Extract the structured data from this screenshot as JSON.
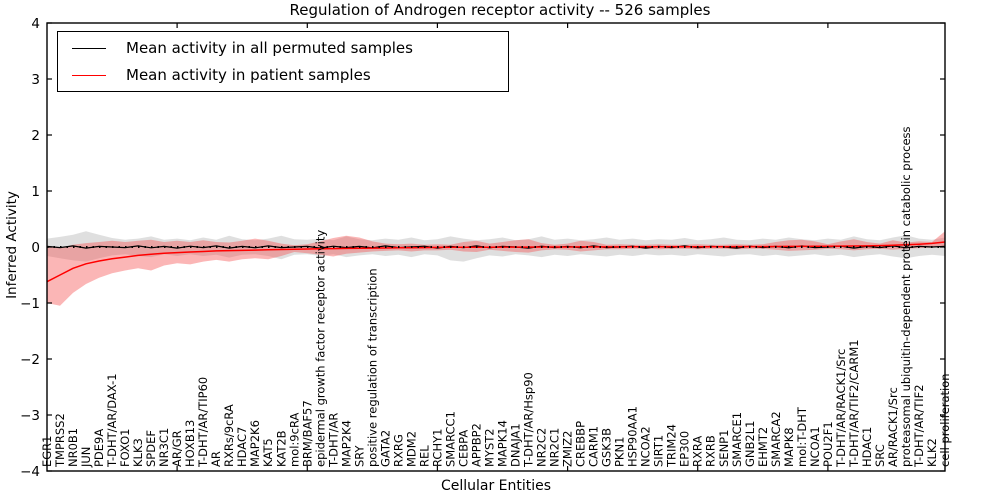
{
  "chart_data": {
    "type": "line",
    "title": "Regulation of Androgen receptor activity -- 526 samples",
    "xlabel": "Cellular Entities",
    "ylabel": "Inferred Activity",
    "ylim": [
      -4,
      4
    ],
    "yticks": [
      -4,
      -3,
      -2,
      -1,
      0,
      1,
      2,
      3,
      4
    ],
    "xticks": [
      10,
      20,
      30,
      40,
      50,
      60
    ],
    "grid": false,
    "legend_position": "upper left",
    "zero_line": {
      "style": "dotted",
      "color": "#000000"
    },
    "categories": [
      "EGR1",
      "TMPRSS2",
      "NR0B1",
      "JUN",
      "PDE9A",
      "T-DHT/AR/DAX-1",
      "FOXO1",
      "KLK3",
      "SPDEF",
      "NR3C1",
      "AR/GR",
      "HOXB13",
      "T-DHT/AR/TIP60",
      "AR",
      "RXRs/9cRA",
      "HDAC7",
      "MAP2K6",
      "KAT5",
      "KAT2B",
      "mol:9cRA",
      "BRM/BAF57",
      "epidermal growth factor receptor activity",
      "T-DHT/AR",
      "MAP2K4",
      "SRY",
      "positive regulation of transcription",
      "GATA2",
      "RXRG",
      "MDM2",
      "REL",
      "RCHY1",
      "SMARCC1",
      "CEBPA",
      "APPBP2",
      "MYST2",
      "MAPK14",
      "DNAJA1",
      "T-DHT/AR/Hsp90",
      "NR2C2",
      "NR2C1",
      "ZMIZ2",
      "CREBBP",
      "CARM1",
      "GSK3B",
      "PKN1",
      "HSP90AA1",
      "NCOA2",
      "SIRT1",
      "TRIM24",
      "EP300",
      "RXRA",
      "RXRB",
      "SENP1",
      "SMARCE1",
      "GNB2L1",
      "EHMT2",
      "SMARCA2",
      "MAPK8",
      "mol:T-DHT",
      "NCOA1",
      "POU2F1",
      "T-DHT/AR/RACK1/Src",
      "T-DHT/AR/TIF2/CARM1",
      "HDAC1",
      "SRC",
      "AR/RACK1/Src",
      "proteasomal ubiquitin-dependent protein catabolic process",
      "T-DHT/AR/TIF2",
      "KLK2",
      "cell proliferation"
    ],
    "series": [
      {
        "name": "Mean activity in all permuted samples",
        "color": "#000000",
        "line_width": 1.2,
        "band_color": "#b8b8b8",
        "band_opacity": 0.45,
        "values": [
          0.01,
          -0.01,
          0.02,
          -0.02,
          0.01,
          0.0,
          -0.01,
          0.02,
          -0.015,
          0.01,
          -0.02,
          0.015,
          -0.01,
          0.02,
          -0.02,
          0.01,
          -0.015,
          0.02,
          -0.01,
          0.0,
          0.01,
          -0.02,
          0.015,
          -0.01,
          0.01,
          -0.015,
          0.02,
          -0.01,
          0.0,
          0.015,
          -0.02,
          0.01,
          -0.01,
          0.02,
          -0.015,
          0.01,
          0.0,
          -0.02,
          0.015,
          -0.01,
          0.01,
          -0.015,
          0.02,
          -0.01,
          0.0,
          0.015,
          -0.02,
          0.01,
          -0.01,
          0.02,
          -0.015,
          0.01,
          0.0,
          -0.02,
          0.015,
          -0.01,
          0.01,
          -0.015,
          0.02,
          -0.01,
          0.0,
          0.015,
          -0.02,
          0.01,
          -0.01,
          0.02,
          -0.015,
          0.01,
          0.0,
          0.01
        ],
        "band_upper": [
          0.15,
          0.18,
          0.22,
          0.28,
          0.22,
          0.16,
          0.13,
          0.15,
          0.19,
          0.13,
          0.15,
          0.12,
          0.17,
          0.13,
          0.2,
          0.14,
          0.12,
          0.15,
          0.2,
          0.14,
          0.13,
          0.15,
          0.12,
          0.19,
          0.14,
          0.12,
          0.15,
          0.13,
          0.17,
          0.12,
          0.14,
          0.19,
          0.15,
          0.12,
          0.14,
          0.17,
          0.12,
          0.14,
          0.19,
          0.13,
          0.15,
          0.12,
          0.14,
          0.17,
          0.13,
          0.15,
          0.12,
          0.14,
          0.13,
          0.16,
          0.12,
          0.14,
          0.17,
          0.13,
          0.12,
          0.15,
          0.13,
          0.17,
          0.14,
          0.12,
          0.15,
          0.13,
          0.19,
          0.14,
          0.12,
          0.17,
          0.21,
          0.15,
          0.13,
          0.17
        ],
        "band_lower": [
          -0.16,
          -0.2,
          -0.24,
          -0.26,
          -0.2,
          -0.15,
          -0.13,
          -0.16,
          -0.18,
          -0.13,
          -0.16,
          -0.13,
          -0.16,
          -0.14,
          -0.19,
          -0.14,
          -0.13,
          -0.16,
          -0.22,
          -0.14,
          -0.13,
          -0.16,
          -0.13,
          -0.18,
          -0.15,
          -0.13,
          -0.16,
          -0.14,
          -0.18,
          -0.13,
          -0.15,
          -0.24,
          -0.26,
          -0.2,
          -0.15,
          -0.17,
          -0.13,
          -0.15,
          -0.18,
          -0.14,
          -0.16,
          -0.13,
          -0.15,
          -0.17,
          -0.14,
          -0.16,
          -0.13,
          -0.15,
          -0.14,
          -0.16,
          -0.13,
          -0.15,
          -0.17,
          -0.14,
          -0.13,
          -0.16,
          -0.14,
          -0.17,
          -0.15,
          -0.13,
          -0.16,
          -0.14,
          -0.18,
          -0.15,
          -0.13,
          -0.17,
          -0.2,
          -0.16,
          -0.14,
          -0.16
        ]
      },
      {
        "name": "Mean activity in patient samples",
        "color": "#ff0000",
        "line_width": 1.5,
        "band_color": "#f55050",
        "band_opacity": 0.42,
        "values": [
          -0.62,
          -0.5,
          -0.38,
          -0.3,
          -0.25,
          -0.21,
          -0.18,
          -0.15,
          -0.13,
          -0.11,
          -0.1,
          -0.09,
          -0.08,
          -0.07,
          -0.065,
          -0.06,
          -0.055,
          -0.05,
          -0.045,
          -0.04,
          -0.035,
          -0.03,
          -0.028,
          -0.025,
          -0.022,
          -0.02,
          -0.018,
          -0.015,
          -0.012,
          -0.01,
          -0.008,
          -0.006,
          -0.005,
          -0.004,
          -0.003,
          -0.002,
          -0.002,
          -0.001,
          0.0,
          0.0,
          0.0,
          0.001,
          0.001,
          0.002,
          0.002,
          0.003,
          0.003,
          0.004,
          0.004,
          0.005,
          0.005,
          0.006,
          0.006,
          0.007,
          0.008,
          0.008,
          0.009,
          0.01,
          0.01,
          0.012,
          0.014,
          0.016,
          0.018,
          0.02,
          0.025,
          0.03,
          0.04,
          0.05,
          0.065,
          0.09
        ],
        "band_upper": [
          0.02,
          -0.02,
          0.04,
          0.07,
          0.09,
          0.11,
          0.09,
          0.11,
          0.13,
          0.09,
          0.11,
          0.09,
          0.12,
          0.09,
          0.08,
          0.11,
          0.15,
          0.11,
          0.06,
          0.03,
          0.05,
          0.1,
          0.16,
          0.2,
          0.17,
          0.1,
          0.06,
          0.05,
          0.06,
          0.04,
          0.05,
          0.04,
          0.09,
          0.11,
          0.06,
          0.09,
          0.12,
          0.14,
          0.07,
          0.04,
          0.06,
          0.11,
          0.09,
          0.04,
          0.05,
          0.04,
          0.04,
          0.05,
          0.04,
          0.04,
          0.05,
          0.04,
          0.04,
          0.05,
          0.04,
          0.05,
          0.09,
          0.12,
          0.13,
          0.1,
          0.05,
          0.1,
          0.14,
          0.09,
          0.06,
          0.12,
          0.08,
          0.1,
          0.09,
          0.28
        ],
        "band_lower": [
          -1.0,
          -1.05,
          -0.82,
          -0.66,
          -0.55,
          -0.47,
          -0.42,
          -0.38,
          -0.42,
          -0.33,
          -0.29,
          -0.31,
          -0.26,
          -0.23,
          -0.26,
          -0.22,
          -0.2,
          -0.22,
          -0.16,
          -0.09,
          -0.11,
          -0.14,
          -0.17,
          -0.12,
          -0.1,
          -0.08,
          -0.07,
          -0.06,
          -0.08,
          -0.06,
          -0.06,
          -0.05,
          -0.08,
          -0.09,
          -0.05,
          -0.07,
          -0.09,
          -0.1,
          -0.06,
          -0.04,
          -0.05,
          -0.08,
          -0.06,
          -0.04,
          -0.04,
          -0.03,
          -0.03,
          -0.04,
          -0.03,
          -0.03,
          -0.04,
          -0.03,
          -0.03,
          -0.04,
          -0.03,
          -0.03,
          -0.05,
          -0.07,
          -0.06,
          -0.05,
          -0.03,
          -0.04,
          -0.06,
          -0.04,
          -0.03,
          -0.05,
          -0.03,
          -0.02,
          -0.01,
          0.0
        ]
      }
    ]
  }
}
